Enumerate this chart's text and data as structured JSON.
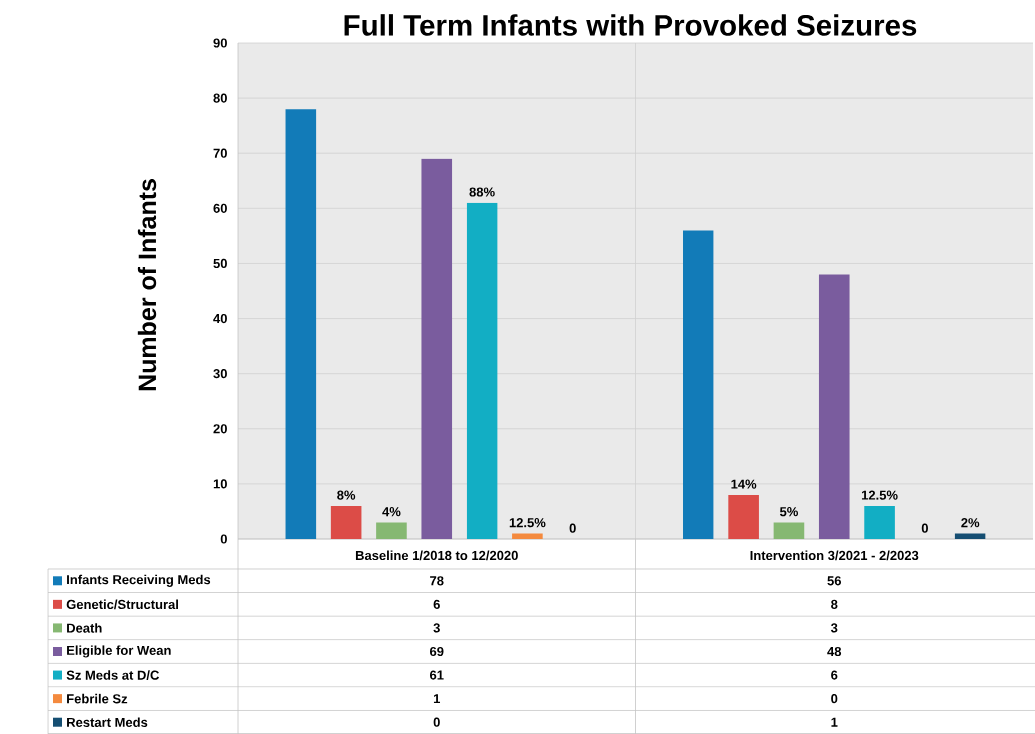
{
  "chart_data": {
    "type": "bar",
    "title": "Full Term Infants with Provoked Seizures",
    "ylabel": "Number of Infants",
    "categories": [
      "Baseline 1/2018 to 12/2020",
      "Intervention 3/2021 - 2/2023"
    ],
    "series": [
      {
        "name": "Infants Receiving Meds",
        "color": "#127bb8",
        "values": [
          78,
          56
        ]
      },
      {
        "name": "Genetic/Structural",
        "color": "#dc4c47",
        "values": [
          6,
          8
        ]
      },
      {
        "name": "Death",
        "color": "#86b872",
        "values": [
          3,
          3
        ]
      },
      {
        "name": "Eligible for Wean",
        "color": "#7a5c9e",
        "values": [
          69,
          48
        ]
      },
      {
        "name": "Sz Meds at D/C",
        "color": "#12aec4",
        "values": [
          61,
          6
        ]
      },
      {
        "name": "Febrile Sz",
        "color": "#f48a3e",
        "values": [
          1,
          0
        ]
      },
      {
        "name": "Restart Meds",
        "color": "#154e72",
        "values": [
          0,
          1
        ]
      }
    ],
    "annotations": [
      "8%",
      "4%",
      "88%",
      "12.5%",
      "0",
      "14%",
      "5%",
      "12.5%",
      "0",
      "2%"
    ],
    "ylim": [
      0,
      90
    ],
    "yticks": [
      0,
      10,
      20,
      30,
      40,
      50,
      60,
      70,
      80,
      90
    ],
    "grid": true,
    "legend": "bottom",
    "data_labels": true
  }
}
